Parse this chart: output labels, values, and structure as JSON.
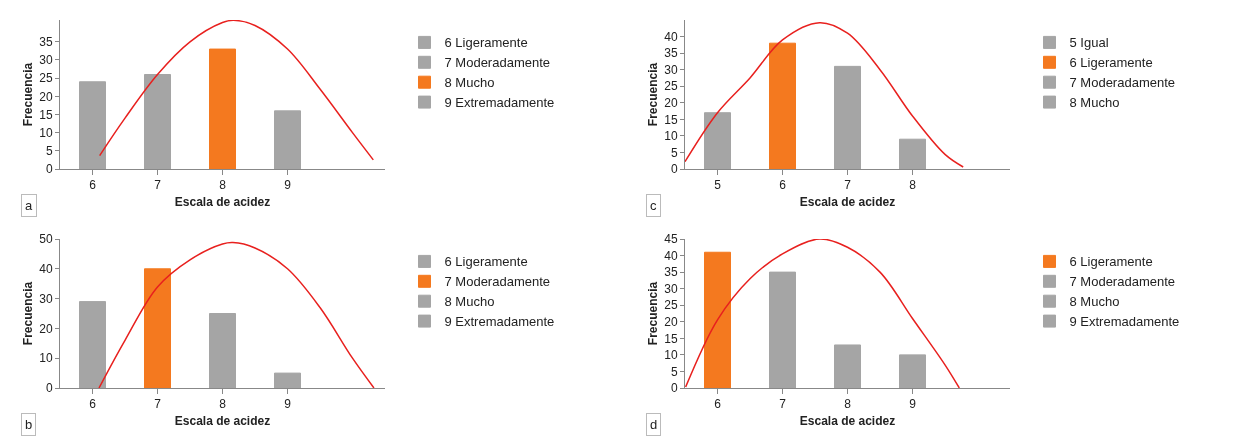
{
  "chart_data": [
    {
      "type": "bar",
      "xlabel": "Escala de acidez",
      "ylabel": "Frecuencia",
      "xlim": [
        5.5,
        10.5
      ],
      "xticks": [
        6,
        7,
        8,
        9
      ],
      "ylim": [
        0,
        41
      ],
      "yticks": [
        0,
        5,
        10,
        15,
        20,
        25,
        30,
        35
      ],
      "legend": "right",
      "annotations": [
        "a"
      ],
      "series": [
        {
          "name": "6 Ligeramente",
          "color": "#a5a5a5",
          "x": [
            6
          ],
          "values": [
            24
          ]
        },
        {
          "name": "7 Moderadamente",
          "color": "#a5a5a5",
          "x": [
            7
          ],
          "values": [
            26
          ]
        },
        {
          "name": "8 Mucho",
          "color": "#f4791f",
          "x": [
            8
          ],
          "values": [
            33
          ]
        },
        {
          "name": "9 Extremadamente",
          "color": "#a5a5a5",
          "x": [
            9
          ],
          "values": [
            16
          ]
        },
        {
          "type": "line",
          "color": "#e8201e",
          "x": [
            6.11,
            6.5,
            7,
            7.5,
            8,
            8.17,
            8.5,
            9,
            9.5,
            10,
            10.32
          ],
          "values": [
            3.7,
            14,
            26,
            35,
            40.3,
            40.9,
            39.5,
            33,
            22,
            10,
            2.5
          ]
        }
      ]
    },
    {
      "type": "bar",
      "xlabel": "Escala de acidez",
      "ylabel": "Frecuencia",
      "xlim": [
        4.5,
        9.5
      ],
      "xticks": [
        5,
        6,
        7,
        8
      ],
      "ylim": [
        0,
        45
      ],
      "yticks": [
        0,
        5,
        10,
        15,
        20,
        25,
        30,
        35,
        40
      ],
      "legend": "right",
      "annotations": [
        "c"
      ],
      "series": [
        {
          "name": "5 Igual",
          "color": "#a5a5a5",
          "x": [
            5
          ],
          "values": [
            17
          ]
        },
        {
          "name": "6 Ligeramente",
          "color": "#f4791f",
          "x": [
            6
          ],
          "values": [
            38
          ]
        },
        {
          "name": "7 Moderadamente",
          "color": "#a5a5a5",
          "x": [
            7
          ],
          "values": [
            31
          ]
        },
        {
          "name": "8 Mucho",
          "color": "#a5a5a5",
          "x": [
            8
          ],
          "values": [
            9
          ]
        },
        {
          "type": "line",
          "color": "#e8201e",
          "x": [
            4.5,
            5,
            5.5,
            6,
            6.57,
            7,
            7.5,
            8,
            8.5,
            8.78
          ],
          "values": [
            2.2,
            17,
            27.5,
            39,
            44.2,
            41,
            30,
            16,
            4.4,
            0.6
          ]
        }
      ]
    },
    {
      "type": "bar",
      "xlabel": "Escala de acidez",
      "ylabel": "Frecuencia",
      "xlim": [
        5.5,
        10.5
      ],
      "xticks": [
        6,
        7,
        8,
        9
      ],
      "ylim": [
        0,
        50
      ],
      "yticks": [
        0,
        10,
        20,
        30,
        40,
        50
      ],
      "legend": "right",
      "annotations": [
        "b"
      ],
      "series": [
        {
          "name": "6 Ligeramente",
          "color": "#a5a5a5",
          "x": [
            6
          ],
          "values": [
            29
          ]
        },
        {
          "name": "7 Moderadamente",
          "color": "#f4791f",
          "x": [
            7
          ],
          "values": [
            40
          ]
        },
        {
          "name": "8 Mucho",
          "color": "#a5a5a5",
          "x": [
            8
          ],
          "values": [
            25
          ]
        },
        {
          "name": "9 Extremadamente",
          "color": "#a5a5a5",
          "x": [
            9
          ],
          "values": [
            5
          ]
        },
        {
          "type": "line",
          "color": "#e8201e",
          "x": [
            6.1,
            6.5,
            7,
            7.5,
            8,
            8.16,
            8.5,
            9,
            9.5,
            10,
            10.33
          ],
          "values": [
            0,
            16,
            33.9,
            43,
            48.3,
            48.8,
            47,
            40,
            27,
            10,
            0
          ]
        }
      ]
    },
    {
      "type": "bar",
      "xlabel": "Escala de acidez",
      "ylabel": "Frecuencia",
      "xlim": [
        5.5,
        10.5
      ],
      "xticks": [
        6,
        7,
        8,
        9
      ],
      "ylim": [
        0,
        45
      ],
      "yticks": [
        0,
        5,
        10,
        15,
        20,
        25,
        30,
        35,
        40,
        45
      ],
      "legend": "right",
      "annotations": [
        "d"
      ],
      "series": [
        {
          "name": "6 Ligeramente",
          "color": "#f4791f",
          "x": [
            6
          ],
          "values": [
            41
          ]
        },
        {
          "name": "7 Moderadamente",
          "color": "#a5a5a5",
          "x": [
            7
          ],
          "values": [
            35
          ]
        },
        {
          "name": "8 Mucho",
          "color": "#a5a5a5",
          "x": [
            8
          ],
          "values": [
            13
          ]
        },
        {
          "name": "9 Extremadamente",
          "color": "#a5a5a5",
          "x": [
            9
          ],
          "values": [
            10
          ]
        },
        {
          "type": "line",
          "color": "#e8201e",
          "x": [
            5.51,
            6,
            6.5,
            7,
            7.57,
            8,
            8.5,
            9,
            9.5,
            9.72
          ],
          "values": [
            0.3,
            20.6,
            33,
            40.5,
            45,
            42.5,
            35,
            21,
            7,
            0
          ]
        }
      ]
    }
  ]
}
